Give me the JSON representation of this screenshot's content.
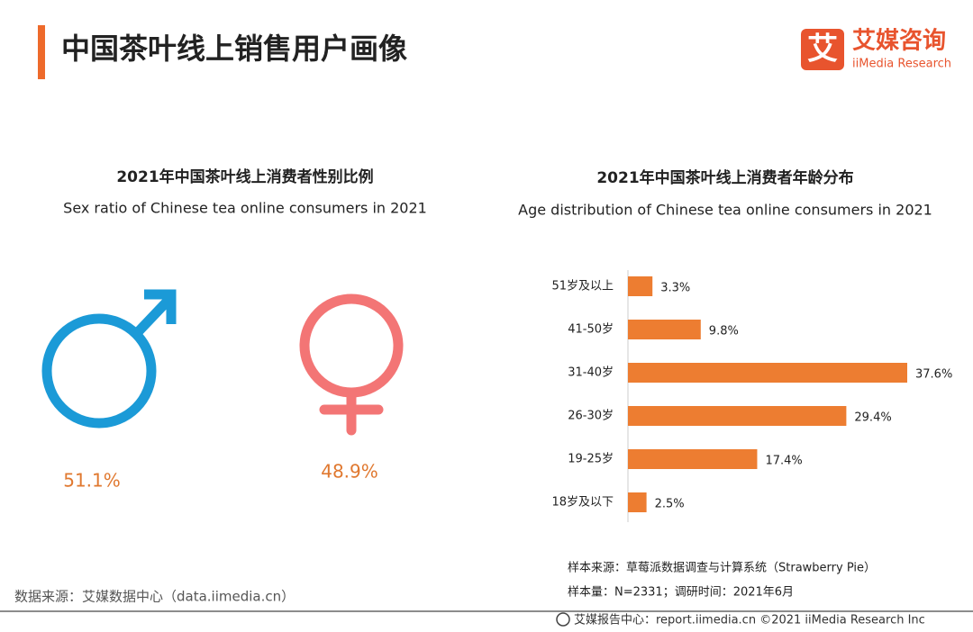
{
  "header": {
    "title": "中国茶叶线上销售用户画像"
  },
  "logo": {
    "icon_text": "艾",
    "name": "艾媒咨询",
    "subtitle": "iiMedia Research"
  },
  "chart_data": [
    {
      "type": "icon",
      "title": "2021年中国茶叶线上消费者性别比例",
      "subtitle": "Sex ratio of Chinese tea online consumers in 2021",
      "categories": [
        null,
        null
      ],
      "values": [
        51.1,
        48.9
      ],
      "value_labels": [
        "51.1%",
        "48.9%"
      ],
      "colors": [
        "#1b9ad7",
        "#f37575"
      ],
      "label_color": "#e0782f"
    },
    {
      "type": "bar",
      "orientation": "horizontal",
      "title": "2021年中国茶叶线上消费者年龄分布",
      "subtitle": "Age distribution of Chinese  tea online consumers in 2021",
      "categories": [
        "51岁及以上",
        "41-50岁",
        "31-40岁",
        "26-30岁",
        "19-25岁",
        "18岁及以下"
      ],
      "values": [
        3.3,
        9.8,
        37.6,
        29.4,
        17.4,
        2.5
      ],
      "value_labels": [
        "3.3%",
        "9.8%",
        "37.6%",
        "29.4%",
        "17.4%",
        "2.5%"
      ],
      "color": "#ed7d31"
    }
  ],
  "notes": [
    "样本来源：草莓派数据调查与计算系统（Strawberry Pie）",
    "样本量：N=2331；调研时间：2021年6月"
  ],
  "source": "数据来源：艾媒数据中心（data.iimedia.cn）",
  "footer": "艾媒报告中心：report.iimedia.cn   ©2021  iiMedia Research  Inc"
}
